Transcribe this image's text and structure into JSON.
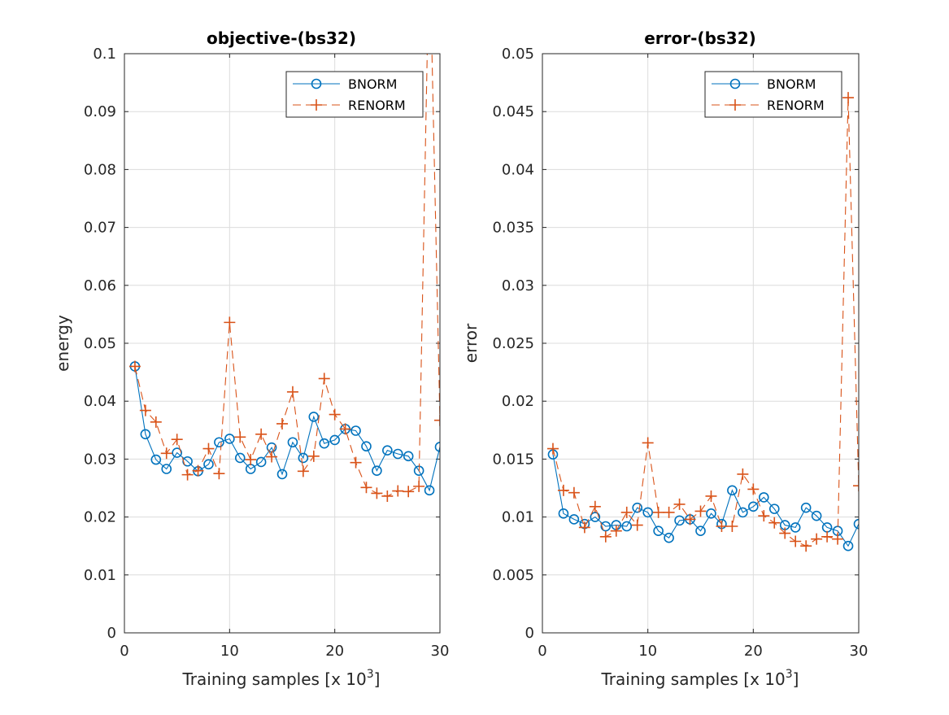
{
  "chart_data": [
    {
      "type": "line",
      "title": "objective-(bs32)",
      "xlabel": "Training samples [x 10",
      "xlabel_sup": "3",
      "xlabel_close": "]",
      "ylabel": "energy",
      "xlim": [
        0,
        30
      ],
      "ylim": [
        0,
        0.1
      ],
      "xticks": [
        "0",
        "10",
        "20",
        "30"
      ],
      "yticks": [
        "0",
        "0.01",
        "0.02",
        "0.03",
        "0.04",
        "0.05",
        "0.06",
        "0.07",
        "0.08",
        "0.09",
        "0.1"
      ],
      "grid": true,
      "legend_position": "top-right",
      "x": [
        1,
        2,
        3,
        4,
        5,
        6,
        7,
        8,
        9,
        10,
        11,
        12,
        13,
        14,
        15,
        16,
        17,
        18,
        19,
        20,
        21,
        22,
        23,
        24,
        25,
        26,
        27,
        28,
        29,
        30
      ],
      "series": [
        {
          "name": "BNORM",
          "color": "#0072BD",
          "marker": "circle",
          "line": "solid",
          "values": [
            0.046,
            0.0343,
            0.0299,
            0.0283,
            0.0311,
            0.0296,
            0.0279,
            0.0291,
            0.0329,
            0.0335,
            0.0302,
            0.0283,
            0.0295,
            0.032,
            0.0274,
            0.0329,
            0.0302,
            0.0373,
            0.0327,
            0.0333,
            0.0352,
            0.0349,
            0.0322,
            0.028,
            0.0315,
            0.0309,
            0.0305,
            0.028,
            0.0246,
            0.0321
          ]
        },
        {
          "name": "RENORM",
          "color": "#D95319",
          "marker": "plus",
          "line": "dashed",
          "values": [
            0.046,
            0.0384,
            0.0364,
            0.031,
            0.0334,
            0.0273,
            0.028,
            0.0318,
            0.0275,
            0.0536,
            0.0338,
            0.0299,
            0.0343,
            0.0304,
            0.0361,
            0.0416,
            0.0279,
            0.0305,
            0.0439,
            0.0377,
            0.0352,
            0.0294,
            0.0251,
            0.0241,
            0.0236,
            0.0245,
            0.0244,
            0.0253,
            0.12,
            0.0367
          ]
        }
      ]
    },
    {
      "type": "line",
      "title": "error-(bs32)",
      "xlabel": "Training samples [x 10",
      "xlabel_sup": "3",
      "xlabel_close": "]",
      "ylabel": "error",
      "xlim": [
        0,
        30
      ],
      "ylim": [
        0,
        0.05
      ],
      "xticks": [
        "0",
        "10",
        "20",
        "30"
      ],
      "yticks": [
        "0",
        "0.005",
        "0.01",
        "0.015",
        "0.02",
        "0.025",
        "0.03",
        "0.035",
        "0.04",
        "0.045",
        "0.05"
      ],
      "grid": true,
      "legend_position": "top-right",
      "x": [
        1,
        2,
        3,
        4,
        5,
        6,
        7,
        8,
        9,
        10,
        11,
        12,
        13,
        14,
        15,
        16,
        17,
        18,
        19,
        20,
        21,
        22,
        23,
        24,
        25,
        26,
        27,
        28,
        29,
        30
      ],
      "series": [
        {
          "name": "BNORM",
          "color": "#0072BD",
          "marker": "circle",
          "line": "solid",
          "values": [
            0.0154,
            0.0103,
            0.0098,
            0.0094,
            0.01,
            0.0092,
            0.0093,
            0.0092,
            0.0108,
            0.0104,
            0.0088,
            0.0082,
            0.0097,
            0.0098,
            0.0088,
            0.0103,
            0.0094,
            0.0123,
            0.0104,
            0.0109,
            0.0117,
            0.0107,
            0.0093,
            0.0091,
            0.0108,
            0.0101,
            0.0091,
            0.0088,
            0.0075,
            0.0094
          ]
        },
        {
          "name": "RENORM",
          "color": "#D95319",
          "marker": "plus",
          "line": "dashed",
          "values": [
            0.0159,
            0.0123,
            0.0121,
            0.0091,
            0.0109,
            0.0083,
            0.0088,
            0.0104,
            0.0093,
            0.0164,
            0.0104,
            0.0104,
            0.0111,
            0.0098,
            0.0105,
            0.0118,
            0.0092,
            0.0092,
            0.0137,
            0.0124,
            0.0101,
            0.0095,
            0.0086,
            0.0079,
            0.0075,
            0.0081,
            0.0083,
            0.0081,
            0.0462,
            0.0127
          ]
        }
      ]
    }
  ]
}
